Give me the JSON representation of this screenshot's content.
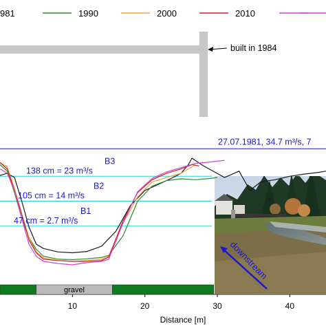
{
  "chart_data": {
    "type": "line",
    "xlabel": "Distance [m]",
    "x_ticks": [
      10,
      20,
      30,
      40
    ],
    "xlim": [
      0,
      45
    ],
    "ylim": [
      0,
      260
    ],
    "legend_position": "top",
    "legend": [
      {
        "label": "981",
        "color": "#1a1a1a"
      },
      {
        "label": "1990",
        "color": "#2e8b2e"
      },
      {
        "label": "2000",
        "color": "#f0a040"
      },
      {
        "label": "2010",
        "color": "#cc2222"
      },
      {
        "label": "",
        "color": "#d040d0"
      }
    ],
    "series": [
      {
        "name": "981",
        "color": "#1a1a1a",
        "x": [
          0,
          1,
          2,
          3,
          4,
          5,
          6,
          8,
          10,
          12,
          14,
          16,
          18,
          20,
          22,
          24,
          25,
          26,
          26.5,
          28,
          31,
          33,
          34.5,
          36,
          38,
          40,
          42,
          44,
          45
        ],
        "y": [
          200,
          205,
          195,
          140,
          80,
          40,
          30,
          22,
          20,
          23,
          35,
          70,
          130,
          165,
          180,
          196,
          205,
          225,
          240,
          223,
          195,
          210,
          165,
          185,
          190,
          198,
          203,
          207,
          210
        ]
      },
      {
        "name": "1990",
        "color": "#2e8b2e",
        "x": [
          0,
          1,
          2,
          3,
          4,
          5,
          6,
          8,
          10,
          12,
          14,
          15,
          17,
          19,
          21,
          23,
          25,
          27,
          29,
          30
        ],
        "y": [
          225,
          210,
          160,
          100,
          55,
          28,
          12,
          5,
          4,
          6,
          9,
          14,
          60,
          140,
          175,
          188,
          192,
          190,
          193,
          195
        ]
      },
      {
        "name": "2000",
        "color": "#f0a040",
        "x": [
          0,
          1,
          2,
          3,
          4,
          5,
          6,
          8,
          10,
          12,
          14,
          15,
          17,
          19,
          21,
          23,
          25,
          27
        ],
        "y": [
          230,
          220,
          170,
          110,
          55,
          22,
          8,
          2,
          0,
          2,
          5,
          12,
          90,
          150,
          185,
          195,
          205,
          225
        ]
      },
      {
        "name": "2010",
        "color": "#cc2222",
        "x": [
          0,
          1,
          2,
          3,
          4,
          5,
          6,
          8,
          10,
          12,
          14,
          15,
          17,
          19,
          21,
          23,
          25,
          26.5,
          27.5
        ],
        "y": [
          230,
          215,
          165,
          110,
          50,
          20,
          5,
          2,
          0,
          0,
          2,
          10,
          95,
          160,
          190,
          205,
          215,
          225,
          222
        ]
      },
      {
        "name": "",
        "color": "#d040d0",
        "x": [
          0,
          1,
          2,
          3,
          4,
          5,
          6,
          8,
          10,
          12,
          14,
          15,
          17,
          19,
          21,
          23,
          25,
          27,
          29,
          31
        ],
        "y": [
          215,
          205,
          165,
          100,
          40,
          12,
          0,
          -5,
          -8,
          -3,
          0,
          5,
          90,
          162,
          193,
          208,
          218,
          228,
          231,
          235
        ]
      }
    ],
    "flow_lines": [
      {
        "label": "27.07.1981, 34.7 m³/s, 7",
        "level": 262,
        "color": "#1a1acc"
      },
      {
        "label": "138 cm = 23 m³/s",
        "marker": "B3",
        "level": 198,
        "color": "#27d0d0"
      },
      {
        "label": "105 cm = 14 m³/s",
        "marker": "B2",
        "level": 140,
        "color": "#27d0d0"
      },
      {
        "label": "47 cm = 2.7 m³/s",
        "marker": "B1",
        "level": 82,
        "color": "#27d0d0"
      }
    ],
    "annotations": [
      {
        "text": "built in 1984"
      }
    ],
    "substrate_bar": [
      {
        "x0": 0,
        "x1": 5,
        "label": "",
        "color": "#0f7a1f"
      },
      {
        "x0": 5,
        "x1": 15.5,
        "label": "gravel",
        "color": "#b9b9b9"
      },
      {
        "x0": 15.5,
        "x1": 29.5,
        "label": "",
        "color": "#0f7a1f"
      }
    ],
    "inset_photo": {
      "label": "downstream"
    }
  }
}
